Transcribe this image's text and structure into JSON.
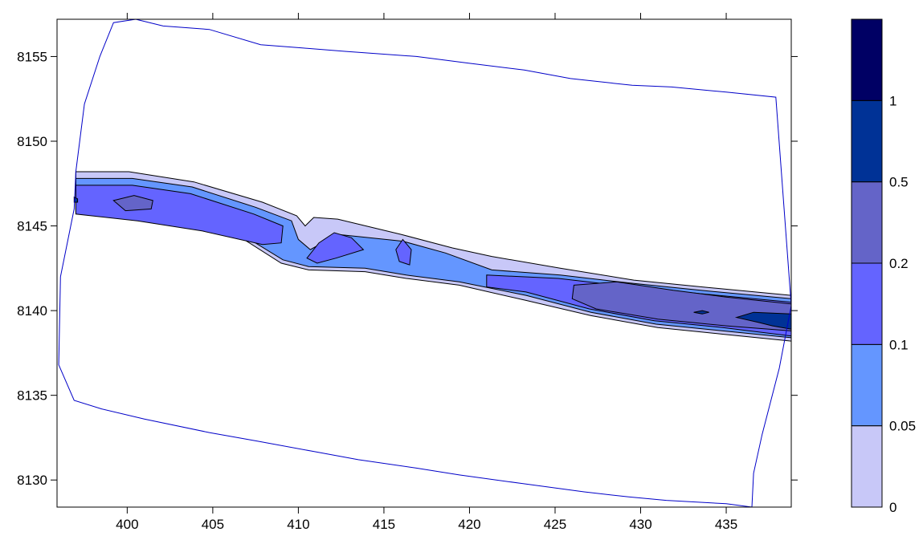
{
  "chart_data": {
    "type": "heatmap",
    "subtype": "filled-contour",
    "title": "",
    "xlabel": "",
    "ylabel": "",
    "xlim": [
      395.9,
      438.8
    ],
    "ylim": [
      8128.4,
      8157.2
    ],
    "x_ticks": [
      400,
      405,
      410,
      415,
      420,
      425,
      430,
      435
    ],
    "y_ticks": [
      8130,
      8135,
      8140,
      8145,
      8150,
      8155
    ],
    "x_tick_labels": [
      "400",
      "405",
      "410",
      "415",
      "420",
      "425",
      "430",
      "435"
    ],
    "y_tick_labels": [
      "8130",
      "8135",
      "8140",
      "8145",
      "8150",
      "8155"
    ],
    "grid": false,
    "colorbar": {
      "placement": "right",
      "levels": [
        0,
        0.05,
        0.1,
        0.2,
        0.5,
        1
      ],
      "labels": [
        "0",
        "0.05",
        "0.1",
        "0.2",
        "0.5",
        "1"
      ],
      "colors": [
        "#c8c8f8",
        "#6496ff",
        "#6464ff",
        "#6464c8",
        "#003296",
        "#000064"
      ]
    },
    "boundary": [
      [
        397.0,
        8148.2
      ],
      [
        397.5,
        8152.2
      ],
      [
        398.4,
        8155.0
      ],
      [
        399.2,
        8157.0
      ],
      [
        400.5,
        8157.2
      ],
      [
        402.1,
        8156.8
      ],
      [
        404.8,
        8156.6
      ],
      [
        407.8,
        8155.7
      ],
      [
        410.3,
        8155.5
      ],
      [
        412.8,
        8155.3
      ],
      [
        416.9,
        8155.0
      ],
      [
        420.0,
        8154.6
      ],
      [
        423.2,
        8154.2
      ],
      [
        425.9,
        8153.7
      ],
      [
        429.5,
        8153.3
      ],
      [
        431.8,
        8153.2
      ],
      [
        435.0,
        8152.9
      ],
      [
        437.9,
        8152.6
      ],
      [
        438.8,
        8140.3
      ],
      [
        438.1,
        8136.6
      ],
      [
        437.1,
        8132.7
      ],
      [
        436.6,
        8130.4
      ],
      [
        436.5,
        8128.4
      ],
      [
        435.0,
        8128.6
      ],
      [
        431.5,
        8128.8
      ],
      [
        429.3,
        8129.0
      ],
      [
        426.7,
        8129.3
      ],
      [
        423.0,
        8129.8
      ],
      [
        419.4,
        8130.3
      ],
      [
        416.9,
        8130.7
      ],
      [
        413.5,
        8131.2
      ],
      [
        410.8,
        8131.7
      ],
      [
        407.6,
        8132.3
      ],
      [
        404.8,
        8132.8
      ],
      [
        401.0,
        8133.6
      ],
      [
        398.5,
        8134.2
      ],
      [
        396.9,
        8134.7
      ],
      [
        396.0,
        8136.8
      ],
      [
        396.1,
        8142.0
      ],
      [
        396.9,
        8146.0
      ]
    ],
    "contours": [
      {
        "level": 0,
        "points": [
          [
            397.0,
            8148.2
          ],
          [
            400.1,
            8148.2
          ],
          [
            403.9,
            8147.6
          ],
          [
            407.9,
            8146.4
          ],
          [
            409.9,
            8145.6
          ],
          [
            410.4,
            8145.0
          ],
          [
            410.9,
            8145.5
          ],
          [
            412.3,
            8145.4
          ],
          [
            416.0,
            8144.5
          ],
          [
            419.0,
            8143.7
          ],
          [
            421.3,
            8143.2
          ],
          [
            425.3,
            8142.5
          ],
          [
            429.6,
            8141.8
          ],
          [
            433.6,
            8141.4
          ],
          [
            438.8,
            8140.9
          ],
          [
            438.8,
            8138.2
          ],
          [
            434.9,
            8138.6
          ],
          [
            431.0,
            8139.0
          ],
          [
            427.1,
            8139.7
          ],
          [
            423.3,
            8140.6
          ],
          [
            419.4,
            8141.5
          ],
          [
            416.3,
            8141.9
          ],
          [
            413.9,
            8142.3
          ],
          [
            410.6,
            8142.4
          ],
          [
            409.0,
            8142.8
          ],
          [
            406.2,
            8144.6
          ],
          [
            402.7,
            8145.2
          ],
          [
            398.6,
            8145.6
          ],
          [
            397.0,
            8145.8
          ]
        ]
      },
      {
        "level": 0.05,
        "points": [
          [
            397.0,
            8147.8
          ],
          [
            400.3,
            8147.8
          ],
          [
            403.8,
            8147.3
          ],
          [
            407.5,
            8146.1
          ],
          [
            409.6,
            8145.3
          ],
          [
            410.0,
            8144.2
          ],
          [
            410.7,
            8143.6
          ],
          [
            412.3,
            8144.5
          ],
          [
            416.1,
            8144.1
          ],
          [
            418.6,
            8143.4
          ],
          [
            421.3,
            8142.4
          ],
          [
            425.3,
            8142.1
          ],
          [
            429.6,
            8141.6
          ],
          [
            433.5,
            8141.2
          ],
          [
            438.8,
            8140.7
          ],
          [
            438.8,
            8138.4
          ],
          [
            434.8,
            8138.8
          ],
          [
            430.9,
            8139.2
          ],
          [
            427.1,
            8139.9
          ],
          [
            423.3,
            8140.9
          ],
          [
            419.4,
            8141.7
          ],
          [
            416.3,
            8142.1
          ],
          [
            413.9,
            8142.5
          ],
          [
            410.6,
            8142.6
          ],
          [
            409.1,
            8143.0
          ],
          [
            406.2,
            8144.8
          ],
          [
            402.7,
            8145.4
          ],
          [
            398.7,
            8145.7
          ],
          [
            397.0,
            8146.0
          ]
        ]
      },
      {
        "level": 0.1,
        "points": [
          [
            397.0,
            8147.4
          ],
          [
            400.3,
            8147.4
          ],
          [
            403.7,
            8146.9
          ],
          [
            407.4,
            8145.7
          ],
          [
            409.1,
            8145.0
          ],
          [
            409.0,
            8144.0
          ],
          [
            407.9,
            8143.9
          ],
          [
            404.4,
            8144.7
          ],
          [
            400.6,
            8145.3
          ],
          [
            397.0,
            8145.7
          ]
        ]
      },
      {
        "level": 0.1,
        "points": [
          [
            410.5,
            8143.1
          ],
          [
            411.2,
            8144.0
          ],
          [
            412.1,
            8144.6
          ],
          [
            413.1,
            8144.3
          ],
          [
            413.8,
            8143.6
          ],
          [
            412.2,
            8143.1
          ],
          [
            411.1,
            8142.8
          ]
        ]
      },
      {
        "level": 0.1,
        "points": [
          [
            421.0,
            8142.1
          ],
          [
            425.2,
            8141.9
          ],
          [
            429.5,
            8141.4
          ],
          [
            433.5,
            8141.0
          ],
          [
            438.8,
            8140.5
          ],
          [
            438.8,
            8138.5
          ],
          [
            434.8,
            8139.0
          ],
          [
            430.8,
            8139.4
          ],
          [
            427.0,
            8140.1
          ],
          [
            423.3,
            8141.1
          ],
          [
            421.0,
            8141.4
          ]
        ]
      },
      {
        "level": 0.1,
        "points": [
          [
            415.7,
            8143.6
          ],
          [
            416.1,
            8144.2
          ],
          [
            416.6,
            8143.6
          ],
          [
            416.5,
            8142.7
          ],
          [
            415.9,
            8142.9
          ]
        ]
      },
      {
        "level": 0.2,
        "points": [
          [
            399.2,
            8146.5
          ],
          [
            400.4,
            8146.8
          ],
          [
            401.5,
            8146.5
          ],
          [
            401.4,
            8146.0
          ],
          [
            399.9,
            8145.9
          ]
        ]
      },
      {
        "level": 0.2,
        "points": [
          [
            426.1,
            8141.5
          ],
          [
            428.6,
            8141.7
          ],
          [
            431.9,
            8141.2
          ],
          [
            435.0,
            8140.8
          ],
          [
            438.8,
            8140.4
          ],
          [
            438.8,
            8138.8
          ],
          [
            435.0,
            8139.1
          ],
          [
            431.0,
            8139.5
          ],
          [
            427.4,
            8140.1
          ],
          [
            426.0,
            8140.7
          ]
        ]
      },
      {
        "level": 0.5,
        "points": [
          [
            433.1,
            8139.9
          ],
          [
            433.6,
            8140.0
          ],
          [
            434.0,
            8139.9
          ],
          [
            433.6,
            8139.8
          ]
        ]
      },
      {
        "level": 0.5,
        "points": [
          [
            435.6,
            8139.6
          ],
          [
            436.6,
            8139.9
          ],
          [
            438.8,
            8139.8
          ],
          [
            438.8,
            8138.9
          ],
          [
            437.7,
            8139.1
          ],
          [
            436.9,
            8139.3
          ]
        ]
      },
      {
        "level": 0.5,
        "points": [
          [
            396.9,
            8146.7
          ],
          [
            397.1,
            8146.6
          ],
          [
            397.1,
            8146.4
          ],
          [
            396.9,
            8146.4
          ]
        ]
      }
    ]
  }
}
